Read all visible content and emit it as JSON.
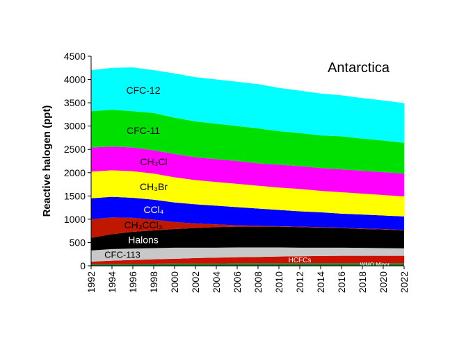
{
  "chart_data": {
    "type": "stacked-area",
    "title": "Antarctica",
    "y_label": "Reactive halogen (ppt)",
    "x": [
      1992,
      1994,
      1996,
      1998,
      2000,
      2002,
      2004,
      2006,
      2008,
      2010,
      2012,
      2014,
      2016,
      2018,
      2020,
      2022
    ],
    "series": [
      {
        "name": "WMO Minor",
        "color": "#217a2c",
        "label_color": "#ffffff",
        "values": [
          40,
          40,
          45,
          45,
          50,
          50,
          50,
          55,
          55,
          55,
          55,
          55,
          55,
          55,
          55,
          55
        ]
      },
      {
        "name": "HCFCs",
        "color": "#cc1100",
        "label_color": "#ffffff",
        "values": [
          50,
          70,
          80,
          95,
          100,
          115,
          125,
          130,
          135,
          145,
          150,
          155,
          160,
          160,
          160,
          160
        ]
      },
      {
        "name": "CFC-113",
        "color": "#c8c8c8",
        "label_color": "#000000",
        "values": [
          240,
          250,
          245,
          240,
          240,
          225,
          215,
          210,
          205,
          195,
          185,
          180,
          175,
          170,
          165,
          160
        ]
      },
      {
        "name": "Halons",
        "color": "#000000",
        "label_color": "#ffffff",
        "values": [
          270,
          320,
          360,
          380,
          400,
          420,
          440,
          445,
          445,
          445,
          440,
          430,
          420,
          405,
          400,
          385
        ]
      },
      {
        "name": "CH₃CCl₃",
        "color": "#c01800",
        "label_color": "#000000",
        "values": [
          400,
          360,
          300,
          230,
          150,
          100,
          60,
          30,
          20,
          10,
          10,
          10,
          10,
          10,
          10,
          10
        ]
      },
      {
        "name": "CCl₄",
        "color": "#0000ff",
        "label_color": "#ffffff",
        "values": [
          450,
          440,
          430,
          430,
          420,
          410,
          400,
          390,
          370,
          350,
          330,
          320,
          300,
          300,
          290,
          290
        ]
      },
      {
        "name": "CH₃Br",
        "color": "#ffff00",
        "label_color": "#000000",
        "values": [
          570,
          570,
          570,
          560,
          540,
          520,
          510,
          500,
          490,
          480,
          480,
          460,
          460,
          450,
          440,
          430
        ]
      },
      {
        "name": "CH₃Cl",
        "color": "#ff00ff",
        "label_color": "#000000",
        "values": [
          520,
          510,
          510,
          500,
          500,
          490,
          490,
          490,
          480,
          490,
          490,
          490,
          490,
          490,
          490,
          490
        ]
      },
      {
        "name": "CFC-11",
        "color": "#00e000",
        "label_color": "#000000",
        "values": [
          780,
          790,
          780,
          800,
          780,
          770,
          760,
          750,
          750,
          720,
          710,
          700,
          710,
          690,
          680,
          660
        ]
      },
      {
        "name": "CFC-12",
        "color": "#00ffff",
        "label_color": "#000000",
        "values": [
          880,
          900,
          940,
          920,
          950,
          950,
          950,
          950,
          950,
          930,
          910,
          900,
          880,
          870,
          860,
          850
        ]
      }
    ],
    "xlim": [
      1992,
      2022
    ],
    "xticks": [
      1992,
      1994,
      1996,
      1998,
      2000,
      2002,
      2004,
      2006,
      2008,
      2010,
      2012,
      2014,
      2016,
      2018,
      2020,
      2022
    ],
    "ylim": [
      0,
      4500
    ],
    "yticks": [
      0,
      500,
      1000,
      1500,
      2000,
      2500,
      3000,
      3500,
      4000,
      4500
    ]
  }
}
